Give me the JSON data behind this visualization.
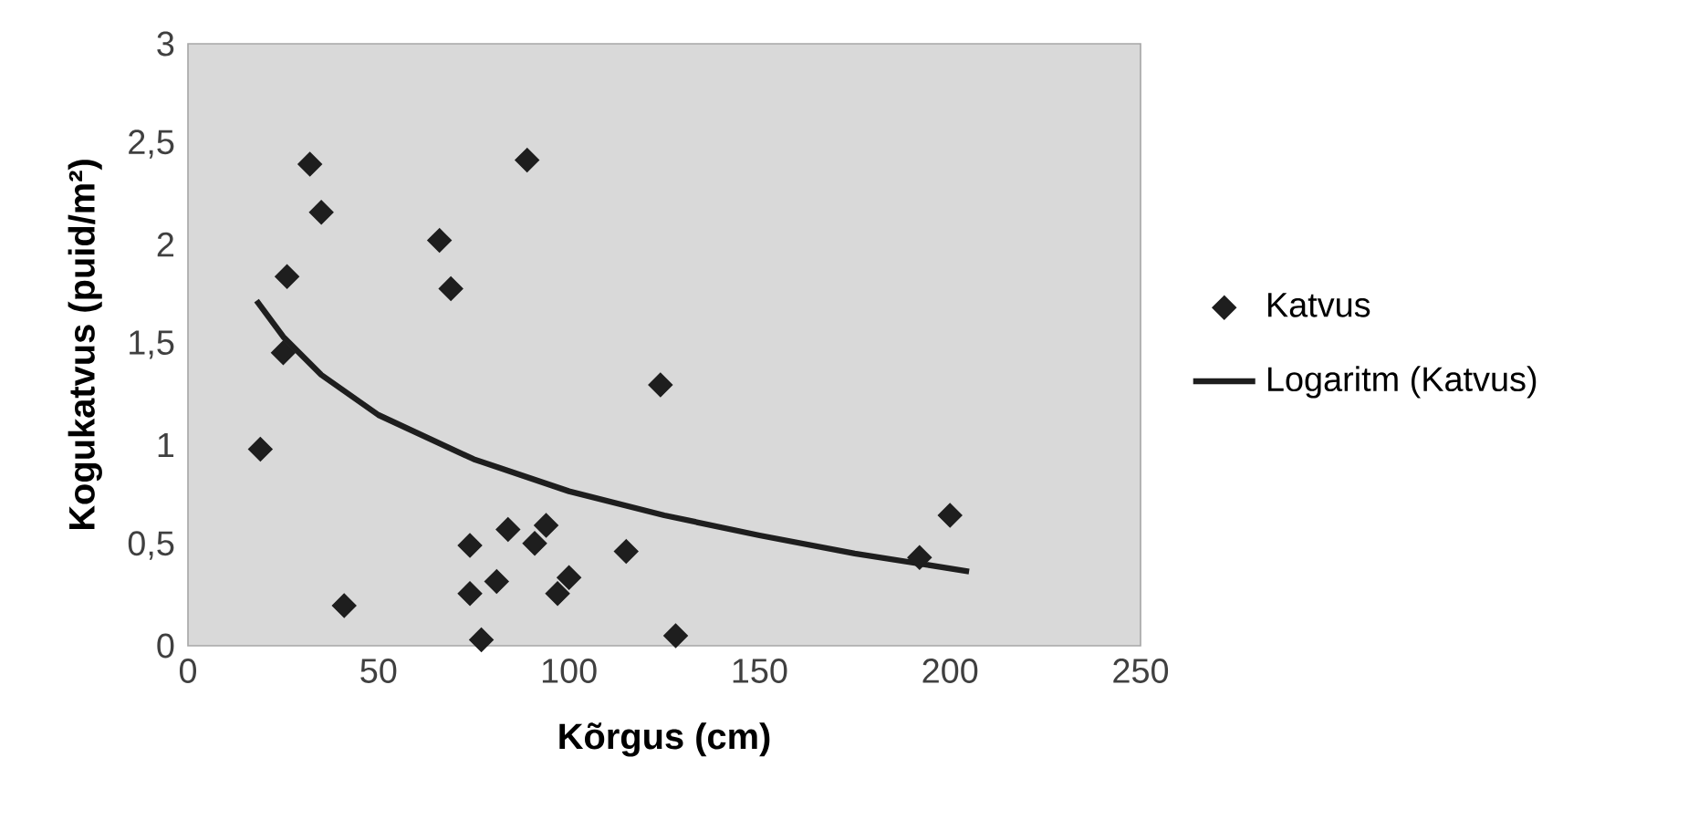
{
  "chart_data": {
    "type": "scatter",
    "xlabel": "Kõrgus (cm)",
    "ylabel": "Kogukatvus (puid/m²)",
    "xlim": [
      0,
      250
    ],
    "xticks": [
      0,
      50,
      100,
      150,
      200,
      250
    ],
    "ylim": [
      0,
      3
    ],
    "yticks": [
      0,
      {
        "value": 0.5,
        "label": "0,5"
      },
      1,
      {
        "value": 1.5,
        "label": "1,5"
      },
      2,
      {
        "value": 2.5,
        "label": "2,5"
      },
      3
    ],
    "grid": false,
    "legend": "right",
    "series": [
      {
        "name": "Katvus",
        "marker": "diamond",
        "color": "#1e1e1e",
        "x": [
          19,
          25,
          26,
          32,
          35,
          41,
          66,
          69,
          74,
          74,
          77,
          81,
          84,
          89,
          91,
          94,
          97,
          100,
          115,
          124,
          128,
          192,
          200
        ],
        "values": [
          0.98,
          1.46,
          1.84,
          2.4,
          2.16,
          0.2,
          2.02,
          1.78,
          0.5,
          0.26,
          0.03,
          0.32,
          0.58,
          2.42,
          0.51,
          0.6,
          0.26,
          0.34,
          0.47,
          1.3,
          0.05,
          0.44,
          0.65
        ]
      },
      {
        "name": "Logaritm (Katvus)",
        "type": "line",
        "color": "#1e1e1e",
        "x": [
          18,
          25,
          35,
          50,
          75,
          100,
          125,
          150,
          175,
          205
        ],
        "values": [
          1.72,
          1.54,
          1.35,
          1.15,
          0.93,
          0.77,
          0.65,
          0.55,
          0.46,
          0.37
        ]
      }
    ]
  }
}
